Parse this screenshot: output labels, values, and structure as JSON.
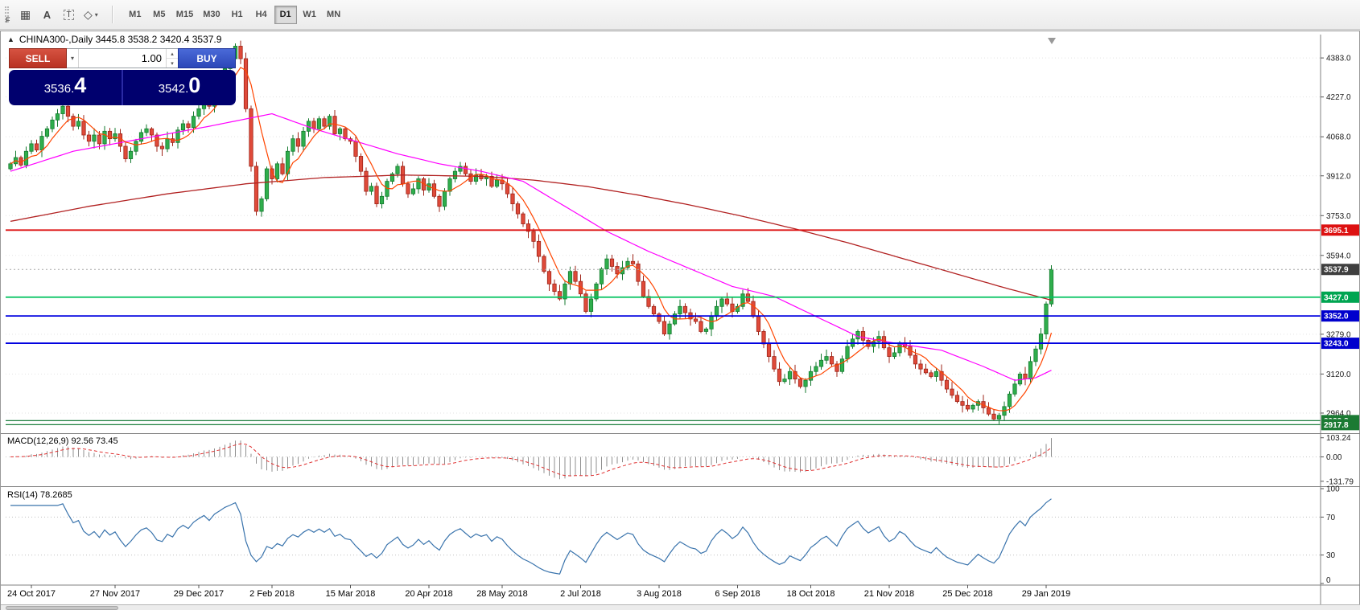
{
  "colors": {
    "candle_up": "#2fae4c",
    "candle_up_border": "#157a2f",
    "candle_down": "#df4a3a",
    "candle_down_border": "#9e2418",
    "ma_short": "#ff4500",
    "ma_mid": "#ff00ff",
    "ma_long": "#b22222",
    "macd_hist": "#8f8f8f",
    "macd_signal": "#e03030",
    "rsi": "#3973ac",
    "grid": "#e3e3e3",
    "axis_line": "#808080"
  },
  "toolbar": {
    "stray_label": "F",
    "tools": [
      {
        "id": "grid-tool",
        "glyph": "▦"
      },
      {
        "id": "text-label-tool",
        "glyph": "A",
        "bold": true
      },
      {
        "id": "text-box-tool",
        "glyph": "T",
        "boxed": true
      },
      {
        "id": "shapes-tool",
        "glyph": "◇",
        "caret": "▾"
      }
    ],
    "timeframes": [
      "M1",
      "M5",
      "M15",
      "M30",
      "H1",
      "H4",
      "D1",
      "W1",
      "MN"
    ],
    "active_timeframe": "D1"
  },
  "chart": {
    "toggle_glyph": "▲",
    "symbol_info": "CHINA300-,Daily  3445.8 3538.2 3420.4 3537.9"
  },
  "trade_panel": {
    "sell_label": "SELL",
    "buy_label": "BUY",
    "amount": "1.00",
    "dropdown_glyph": "▾",
    "spin_up": "▴",
    "spin_down": "▾",
    "sell_price_int": "3536.",
    "sell_price_frac": "4",
    "buy_price_int": "3542.",
    "buy_price_frac": "0"
  },
  "price_axis": {
    "ticks": [
      4383.0,
      4227.0,
      4068.0,
      3912.0,
      3753.0,
      3594.0,
      3279.0,
      3120.0,
      2964.0
    ],
    "badges": [
      {
        "label": "3695.1",
        "price": 3695.1,
        "bg": "#dd1111"
      },
      {
        "label": "3537.9",
        "price": 3537.9,
        "bg": "#3f3f3f"
      },
      {
        "label": "3427.0",
        "price": 3427.0,
        "bg": "#00a551"
      },
      {
        "label": "3352.0",
        "price": 3352.0,
        "bg": "#0000cd"
      },
      {
        "label": "3243.0",
        "price": 3243.0,
        "bg": "#0000cd"
      },
      {
        "label": "2933.8",
        "price": 2933.8,
        "bg": "#1b7a33"
      },
      {
        "label": "2917.8",
        "price": 2917.8,
        "bg": "#1b7a33"
      }
    ]
  },
  "indicators": {
    "macd": {
      "label": "MACD(12,26,9) 92.56 73.45",
      "axis": [
        {
          "label": "103.24",
          "value": 103.24
        },
        {
          "label": "0.00",
          "value": 0
        },
        {
          "label": "-131.79",
          "value": -131.79
        }
      ]
    },
    "rsi": {
      "label": "RSI(14) 78.2685",
      "axis": [
        {
          "label": "100",
          "value": 100
        },
        {
          "label": "70",
          "value": 70
        },
        {
          "label": "30",
          "value": 30
        },
        {
          "label": "0",
          "value": 0
        }
      ],
      "levels": [
        70,
        30
      ]
    }
  },
  "chart_data": {
    "type": "candlestick",
    "symbol": "CHINA300-",
    "timeframe": "Daily",
    "current_ohlc": {
      "open": 3445.8,
      "high": 3538.2,
      "low": 3420.4,
      "close": 3537.9
    },
    "bid": 3536.4,
    "ask": 3542.0,
    "price_range": [
      2890,
      4470
    ],
    "closes": [
      3960,
      3985,
      3955,
      4010,
      4040,
      4015,
      4070,
      4100,
      4135,
      4160,
      4190,
      4150,
      4110,
      4130,
      4075,
      4050,
      4075,
      4040,
      4090,
      4060,
      4080,
      4030,
      3980,
      4010,
      4050,
      4085,
      4100,
      4075,
      4030,
      4020,
      4060,
      4045,
      4095,
      4120,
      4105,
      4150,
      4180,
      4210,
      4190,
      4250,
      4290,
      4340,
      4380,
      4430,
      4380,
      4180,
      3950,
      3770,
      3820,
      3940,
      3900,
      3960,
      3920,
      4010,
      4060,
      4030,
      4090,
      4130,
      4100,
      4140,
      4110,
      4150,
      4080,
      4100,
      4060,
      4050,
      3990,
      3930,
      3850,
      3870,
      3800,
      3830,
      3890,
      3920,
      3950,
      3880,
      3840,
      3860,
      3900,
      3855,
      3880,
      3830,
      3790,
      3850,
      3900,
      3930,
      3950,
      3920,
      3890,
      3915,
      3900,
      3910,
      3870,
      3895,
      3880,
      3840,
      3800,
      3760,
      3720,
      3690,
      3650,
      3590,
      3530,
      3480,
      3450,
      3420,
      3480,
      3530,
      3490,
      3440,
      3370,
      3420,
      3480,
      3540,
      3580,
      3550,
      3520,
      3545,
      3570,
      3560,
      3490,
      3430,
      3390,
      3360,
      3330,
      3280,
      3320,
      3360,
      3390,
      3365,
      3340,
      3330,
      3290,
      3300,
      3350,
      3390,
      3420,
      3400,
      3370,
      3390,
      3440,
      3410,
      3350,
      3290,
      3240,
      3190,
      3140,
      3090,
      3100,
      3130,
      3100,
      3070,
      3095,
      3130,
      3150,
      3175,
      3190,
      3160,
      3130,
      3180,
      3230,
      3260,
      3290,
      3255,
      3230,
      3250,
      3270,
      3225,
      3190,
      3205,
      3245,
      3230,
      3195,
      3160,
      3140,
      3125,
      3110,
      3130,
      3095,
      3060,
      3035,
      3010,
      2995,
      2980,
      2995,
      3010,
      2985,
      2960,
      2940,
      2955,
      2990,
      3040,
      3080,
      3120,
      3100,
      3170,
      3220,
      3280,
      3400,
      3538
    ],
    "date_anchors": [
      {
        "label": "24 Oct 2017",
        "i": 4
      },
      {
        "label": "27 Nov 2017",
        "i": 20
      },
      {
        "label": "29 Dec 2017",
        "i": 36
      },
      {
        "label": "2 Feb 2018",
        "i": 50
      },
      {
        "label": "15 Mar 2018",
        "i": 65
      },
      {
        "label": "20 Apr 2018",
        "i": 80
      },
      {
        "label": "28 May 2018",
        "i": 94
      },
      {
        "label": "2 Jul 2018",
        "i": 109
      },
      {
        "label": "3 Aug 2018",
        "i": 124
      },
      {
        "label": "6 Sep 2018",
        "i": 139
      },
      {
        "label": "18 Oct 2018",
        "i": 153
      },
      {
        "label": "21 Nov 2018",
        "i": 168
      },
      {
        "label": "25 Dec 2018",
        "i": 183
      },
      {
        "label": "29 Jan 2019",
        "i": 198
      }
    ],
    "overlays": {
      "ma_short": {
        "period": 20,
        "sma_window": 6
      },
      "ma_mid": {
        "period": 50,
        "points": [
          [
            0,
            3930
          ],
          [
            12,
            4010
          ],
          [
            25,
            4060
          ],
          [
            38,
            4110
          ],
          [
            50,
            4160
          ],
          [
            58,
            4100
          ],
          [
            66,
            4050
          ],
          [
            74,
            4000
          ],
          [
            82,
            3960
          ],
          [
            90,
            3930
          ],
          [
            98,
            3890
          ],
          [
            106,
            3790
          ],
          [
            114,
            3690
          ],
          [
            122,
            3610
          ],
          [
            130,
            3540
          ],
          [
            138,
            3470
          ],
          [
            146,
            3430
          ],
          [
            154,
            3350
          ],
          [
            162,
            3270
          ],
          [
            170,
            3240
          ],
          [
            178,
            3215
          ],
          [
            186,
            3150
          ],
          [
            192,
            3095
          ],
          [
            196,
            3105
          ],
          [
            199,
            3135
          ]
        ]
      },
      "ma_long": {
        "period": 150,
        "points": [
          [
            0,
            3730
          ],
          [
            15,
            3790
          ],
          [
            30,
            3840
          ],
          [
            45,
            3880
          ],
          [
            60,
            3905
          ],
          [
            75,
            3915
          ],
          [
            90,
            3910
          ],
          [
            100,
            3895
          ],
          [
            110,
            3870
          ],
          [
            120,
            3835
          ],
          [
            130,
            3795
          ],
          [
            140,
            3750
          ],
          [
            150,
            3700
          ],
          [
            160,
            3645
          ],
          [
            170,
            3585
          ],
          [
            180,
            3525
          ],
          [
            190,
            3465
          ],
          [
            199,
            3415
          ]
        ]
      }
    },
    "hlines": [
      {
        "price": 3695.1,
        "color": "#dd1111",
        "width": 1.8,
        "style": "solid"
      },
      {
        "price": 3537.9,
        "color": "#aaaaaa",
        "width": 1,
        "style": "dotted"
      },
      {
        "price": 3427.0,
        "color": "#00c25e",
        "width": 1.8,
        "style": "solid"
      },
      {
        "price": 3352.0,
        "color": "#0000e0",
        "width": 1.8,
        "style": "solid"
      },
      {
        "price": 3243.0,
        "color": "#0000e0",
        "width": 1.8,
        "style": "solid"
      },
      {
        "price": 2933.8,
        "color": "#1f8040",
        "width": 1.3,
        "style": "solid"
      },
      {
        "price": 2917.8,
        "color": "#1f8040",
        "width": 1.3,
        "style": "solid"
      }
    ],
    "macd": {
      "fast": 12,
      "slow": 26,
      "signal": 9,
      "current_main": 92.56,
      "current_signal": 73.45,
      "axis_max": 103.24,
      "axis_min": -131.79
    },
    "rsi": {
      "period": 14,
      "current": 78.2685,
      "levels": [
        70,
        30
      ]
    }
  }
}
